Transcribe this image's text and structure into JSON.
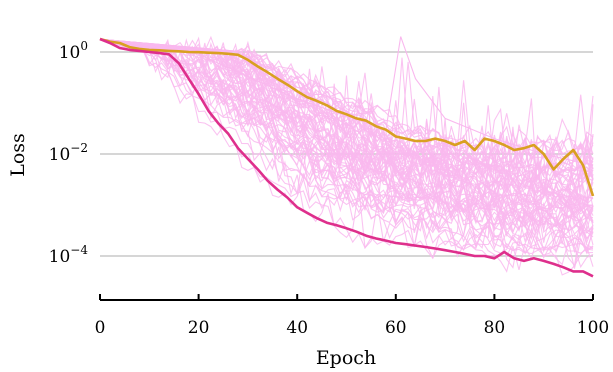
{
  "chart_data": {
    "type": "line",
    "xlabel": "Epoch",
    "ylabel": "Loss",
    "yscale": "log",
    "xlim": [
      0,
      100
    ],
    "ylim": [
      3e-05,
      3
    ],
    "grid": "horizontal",
    "x_ticks": [
      0,
      20,
      40,
      60,
      80,
      100
    ],
    "y_ticks": [
      {
        "value": 1,
        "base": "10",
        "exp": "0"
      },
      {
        "value": 0.01,
        "base": "10",
        "exp": "−2"
      },
      {
        "value": 0.0001,
        "base": "10",
        "exp": "−4"
      }
    ],
    "colors": {
      "background_runs": "#f9b8ee",
      "upper_run": "#d9a021",
      "lower_run": "#de2f8c",
      "grid": "#c8c8c8"
    },
    "upper_run": {
      "x": [
        0,
        2,
        4,
        6,
        8,
        10,
        12,
        14,
        16,
        18,
        20,
        22,
        24,
        26,
        28,
        30,
        32,
        34,
        36,
        38,
        40,
        42,
        44,
        46,
        48,
        50,
        52,
        54,
        56,
        58,
        60,
        62,
        64,
        66,
        68,
        70,
        72,
        74,
        76,
        78,
        80,
        82,
        84,
        86,
        88,
        90,
        92,
        94,
        96,
        98,
        100
      ],
      "y": [
        1.8,
        1.6,
        1.5,
        1.25,
        1.15,
        1.1,
        1.08,
        1.05,
        1.03,
        1.0,
        0.99,
        0.97,
        0.95,
        0.92,
        0.88,
        0.7,
        0.52,
        0.4,
        0.3,
        0.23,
        0.17,
        0.13,
        0.11,
        0.09,
        0.07,
        0.06,
        0.05,
        0.045,
        0.035,
        0.03,
        0.022,
        0.02,
        0.018,
        0.018,
        0.02,
        0.018,
        0.015,
        0.018,
        0.012,
        0.02,
        0.018,
        0.015,
        0.012,
        0.013,
        0.015,
        0.01,
        0.005,
        0.008,
        0.012,
        0.006,
        0.0015
      ]
    },
    "lower_run": {
      "x": [
        0,
        2,
        4,
        6,
        8,
        10,
        12,
        14,
        16,
        18,
        20,
        22,
        24,
        26,
        28,
        30,
        32,
        34,
        36,
        38,
        40,
        42,
        44,
        46,
        48,
        50,
        52,
        54,
        56,
        58,
        60,
        62,
        64,
        66,
        68,
        70,
        72,
        74,
        76,
        78,
        80,
        82,
        84,
        86,
        88,
        90,
        92,
        94,
        96,
        98,
        100
      ],
      "y": [
        1.8,
        1.5,
        1.2,
        1.1,
        1.05,
        1.0,
        0.95,
        0.9,
        0.6,
        0.3,
        0.15,
        0.07,
        0.04,
        0.025,
        0.013,
        0.008,
        0.005,
        0.003,
        0.002,
        0.0014,
        0.0009,
        0.0007,
        0.00055,
        0.00045,
        0.0004,
        0.00035,
        0.0003,
        0.00025,
        0.00022,
        0.0002,
        0.00018,
        0.00017,
        0.00016,
        0.00015,
        0.00014,
        0.00013,
        0.00012,
        0.00011,
        0.0001,
        0.0001,
        9e-05,
        0.00012,
        9e-05,
        8e-05,
        9e-05,
        8e-05,
        7e-05,
        6e-05,
        5e-05,
        5e-05,
        4e-05
      ]
    }
  }
}
